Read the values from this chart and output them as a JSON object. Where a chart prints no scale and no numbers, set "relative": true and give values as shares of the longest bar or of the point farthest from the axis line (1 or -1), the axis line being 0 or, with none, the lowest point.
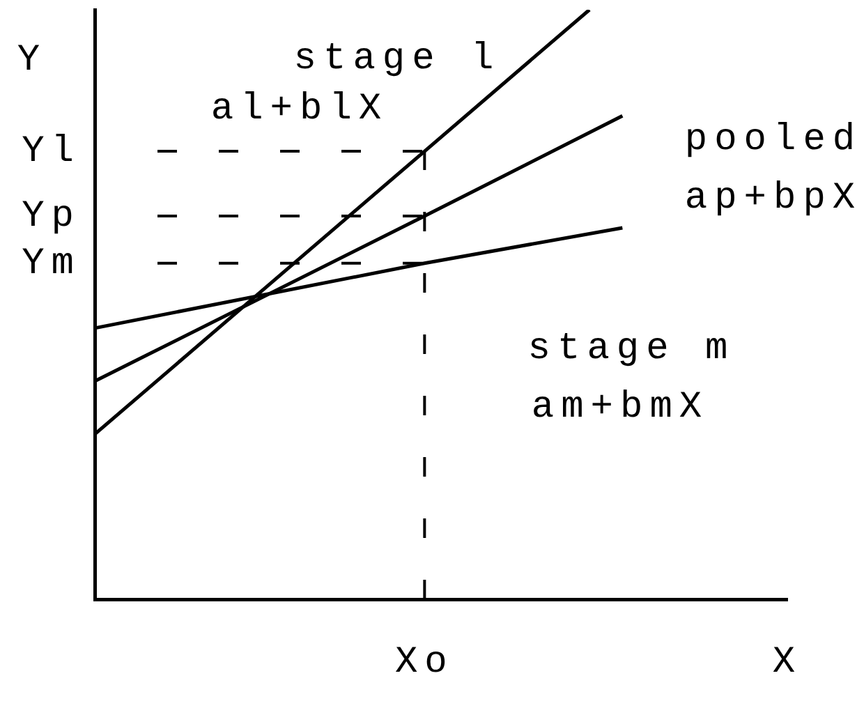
{
  "chart_data": {
    "type": "line",
    "relative": true,
    "ylabel": "Y",
    "categories": [
      null,
      null,
      null,
      null,
      null,
      null,
      null,
      null,
      null,
      null,
      "Xo",
      null,
      null,
      null,
      null,
      null,
      null,
      null,
      null,
      null,
      null,
      "X"
    ],
    "series": [
      {
        "name": "stage l",
        "color": "#000000",
        "values": [
          0.28,
          null,
          null,
          null,
          null,
          null,
          null,
          null,
          null,
          null,
          0.76,
          null,
          null,
          null,
          null,
          1,
          null,
          null,
          null,
          null,
          null,
          null
        ]
      },
      {
        "name": "pooled",
        "color": "#000000",
        "values": [
          0.37,
          null,
          null,
          null,
          null,
          null,
          null,
          null,
          null,
          null,
          0.65,
          null,
          null,
          null,
          null,
          null,
          0.82,
          null,
          null,
          null,
          null,
          null
        ]
      },
      {
        "name": "stage m",
        "color": "#000000",
        "values": [
          0.46,
          null,
          null,
          null,
          null,
          null,
          null,
          null,
          null,
          null,
          0.57,
          null,
          null,
          null,
          null,
          null,
          0.63,
          null,
          null,
          null,
          null,
          null
        ]
      }
    ],
    "annotations": [
      "al+blX",
      "ap+bpX",
      "am+bmX"
    ],
    "ref_lines": [
      {
        "axis": "y",
        "value": 0.76,
        "label": "Yl",
        "line_style": "dashed"
      },
      {
        "axis": "y",
        "value": 0.65,
        "label": "Yp",
        "line_style": "dashed"
      },
      {
        "axis": "y",
        "value": 0.57,
        "label": "Ym",
        "line_style": "dashed"
      },
      {
        "axis": "x",
        "value": "Xo",
        "line_style": "dashed"
      }
    ],
    "grid": false,
    "legend": false,
    "marker": "none",
    "line_style": "solid"
  }
}
